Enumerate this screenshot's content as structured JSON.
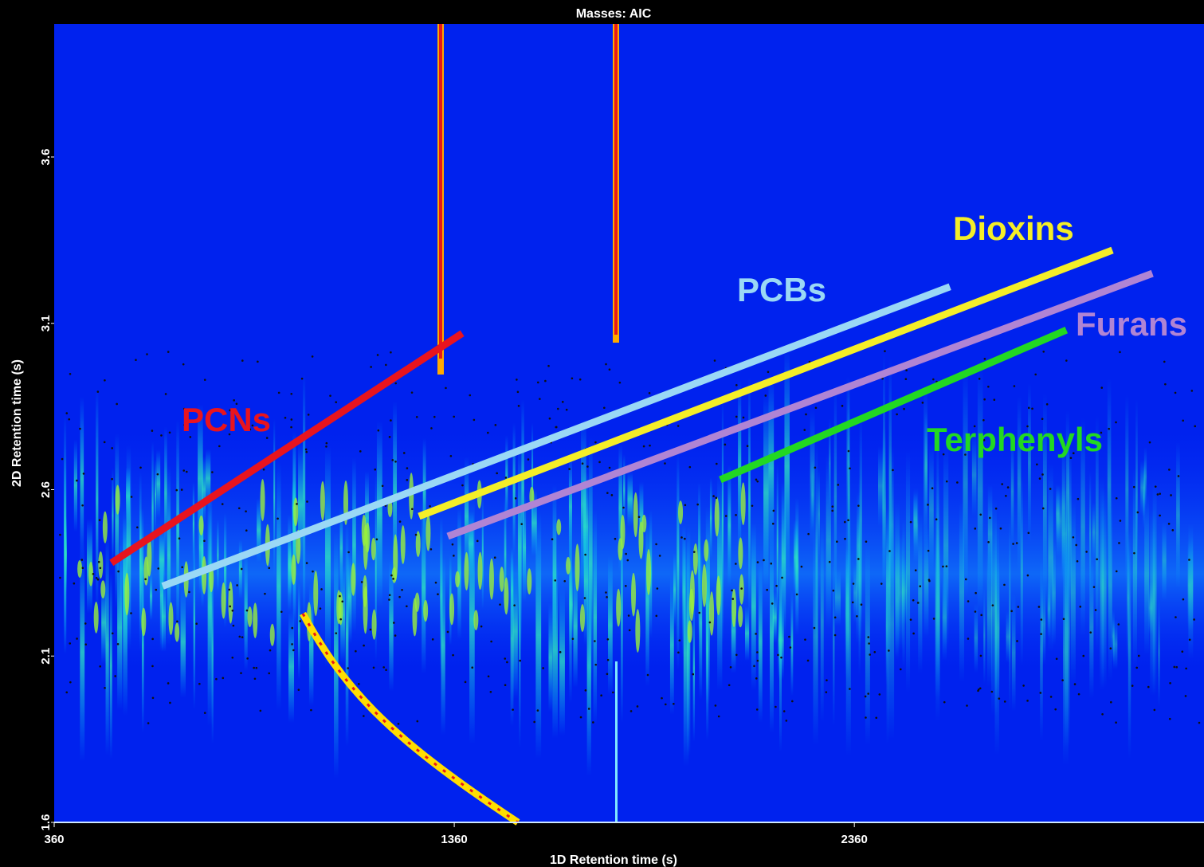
{
  "chart_data": {
    "type": "line",
    "title": "Masses: AIC",
    "x_label": "1D Retention time (s)",
    "y_label": "2D Retention time (s)",
    "xlim": [
      360,
      3234
    ],
    "ylim": [
      1.6,
      4.0
    ],
    "xticks": [
      360,
      1360,
      2360
    ],
    "yticks": [
      1.6,
      2.1,
      2.6,
      3.1,
      3.6
    ],
    "series": [
      {
        "name": "PCNs",
        "color": "#e8141e",
        "x": [
          503,
          1380
        ],
        "values": [
          2.38,
          3.07
        ]
      },
      {
        "name": "PCBs",
        "color": "#9ad8f5",
        "x": [
          631,
          2599
        ],
        "values": [
          2.31,
          3.21
        ]
      },
      {
        "name": "Dioxins",
        "color": "#f4ee28",
        "x": [
          1272,
          3005
        ],
        "values": [
          2.52,
          3.32
        ]
      },
      {
        "name": "Furans",
        "color": "#b084d4",
        "x": [
          1344,
          3105
        ],
        "values": [
          2.46,
          3.25
        ]
      },
      {
        "name": "Terphenyls",
        "color": "#22d822",
        "x": [
          2025,
          2890
        ],
        "values": [
          2.63,
          3.08
        ]
      }
    ]
  }
}
